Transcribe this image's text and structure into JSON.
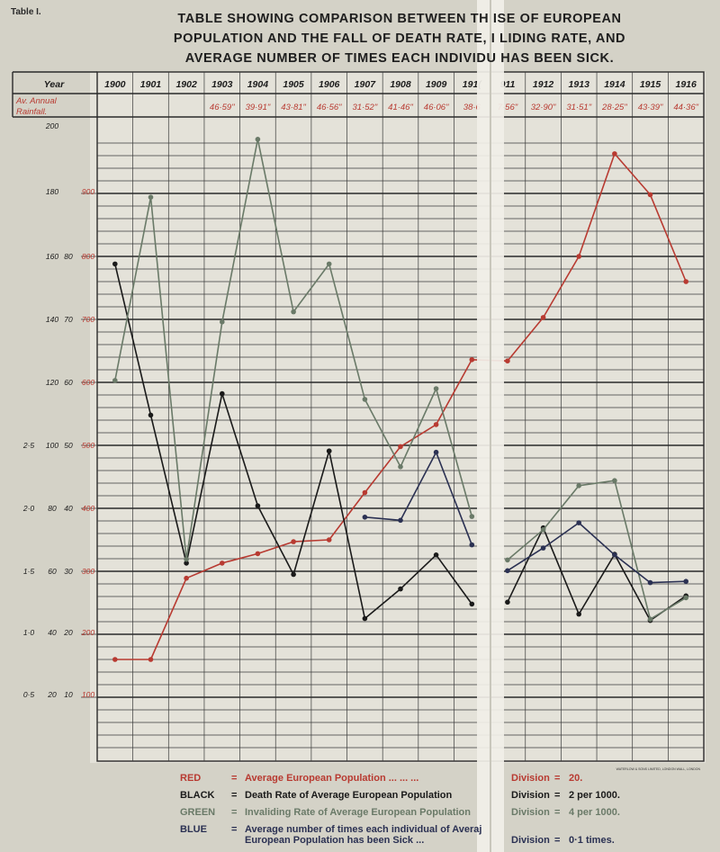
{
  "page": {
    "table_label": "Table I.",
    "title_lines": [
      "TABLE SHOWING COMPARISON BETWEEN TH  ISE OF EUROPEAN",
      "POPULATION AND THE FALL OF DEATH RATE, I  LIDING RATE, AND",
      "AVERAGE NUMBER OF TIMES EACH INDIVIDU   HAS BEEN SICK."
    ],
    "printer_credit": "WATERLOW & SONS LIMITED, LONDON WALL, LONDON"
  },
  "colors": {
    "red": "#b83a31",
    "black": "#1a1a1a",
    "green": "#6a7a68",
    "blue": "#2b3153"
  },
  "chart_data": {
    "type": "line",
    "header_rows": {
      "year_label": "Year",
      "rainfall_label_1": "Av. Annual",
      "rainfall_label_2": "Rainfall.",
      "years": [
        "1900",
        "1901",
        "1902",
        "1903",
        "1904",
        "1905",
        "1906",
        "1907",
        "1908",
        "1909",
        "1910",
        "1911",
        "1912",
        "1913",
        "1914",
        "1915",
        "1916"
      ],
      "years_printed": [
        "1900",
        "1901",
        "1902",
        "1903",
        "1904",
        "1905",
        "1906",
        "1907",
        "1908",
        "1909",
        "191(",
        "911",
        "1912",
        "1913",
        "1914",
        "1915",
        "1916"
      ],
      "rainfall": [
        "",
        "",
        "",
        "46·59\"",
        "39·91\"",
        "43·81\"",
        "46·56\"",
        "31·52\"",
        "41·46\"",
        "46·06\"",
        "38·6",
        "7·56\"",
        "32·90\"",
        "31·51\"",
        "28·25\"",
        "43·39\"",
        "44·36\""
      ]
    },
    "y_scales": [
      {
        "name": "Blue (times sick)",
        "ticks": [
          "2·5",
          "2·0",
          "1·5",
          "1·0",
          "0·5"
        ]
      },
      {
        "name": "Black (per 1000)",
        "ticks": [
          "",
          "",
          "",
          "",
          "",
          "",
          "",
          ""
        ],
        "ticks_full": [
          "180",
          "160",
          "140",
          "120",
          "100",
          "80",
          "60",
          "40",
          "20"
        ]
      },
      {
        "name": "Green (per 1000)",
        "ticks": [
          "80",
          "70",
          "60",
          "50",
          "40",
          "30",
          "20",
          "10"
        ]
      },
      {
        "name": "Red (population)",
        "ticks": [
          "900",
          "800",
          "700",
          "600",
          "500",
          "400",
          "300",
          "200",
          "100"
        ]
      }
    ],
    "tick_columns": {
      "blue": [
        "",
        "",
        "",
        "",
        "",
        "2·5",
        "2·0",
        "1·5",
        "1·0",
        "0·5"
      ],
      "black": [
        "200",
        "180",
        "160",
        "140",
        "120",
        "100",
        "80",
        "60",
        "40",
        "20"
      ],
      "green": [
        "",
        "",
        "80",
        "70",
        "60",
        "50",
        "40",
        "30",
        "20",
        "10"
      ],
      "red": [
        "",
        "900",
        "800",
        "700",
        "600",
        "500",
        "400",
        "300",
        "200",
        "100"
      ]
    },
    "ylim_red": [
      0,
      1000
    ],
    "series": [
      {
        "name": "RED",
        "color_key": "red",
        "points": [
          [
            "1900",
            160
          ],
          [
            "1901",
            160
          ],
          [
            "1902",
            289
          ],
          [
            "1903",
            313
          ],
          [
            "1904",
            328
          ],
          [
            "1905",
            347
          ],
          [
            "1906",
            350
          ],
          [
            "1907",
            425
          ],
          [
            "1908",
            498
          ],
          [
            "1909",
            533
          ],
          [
            "1910",
            636
          ],
          [
            "1911",
            634
          ],
          [
            "1912",
            703
          ],
          [
            "1913",
            800
          ],
          [
            "1914",
            963
          ],
          [
            "1915",
            898
          ],
          [
            "1916",
            760
          ]
        ]
      },
      {
        "name": "BLACK",
        "color_key": "black",
        "segments": [
          [
            [
              "1900",
              788
            ],
            [
              "1901",
              548
            ],
            [
              "1902",
              313
            ],
            [
              "1903",
              582
            ],
            [
              "1904",
              404
            ],
            [
              "1905",
              295
            ],
            [
              "1906",
              491
            ]
          ],
          [
            [
              "1906",
              491
            ],
            [
              "1907",
              225
            ],
            [
              "1908",
              272
            ],
            [
              "1909",
              326
            ],
            [
              "1910",
              248
            ]
          ],
          [
            [
              "1911",
              251
            ],
            [
              "1912",
              369
            ],
            [
              "1913",
              232
            ],
            [
              "1914",
              327
            ],
            [
              "1915",
              222
            ],
            [
              "1916",
              261
            ]
          ]
        ]
      },
      {
        "name": "GREEN",
        "color_key": "green",
        "segments": [
          [
            [
              "1900",
              603
            ],
            [
              "1901",
              894
            ],
            [
              "1902",
              319
            ],
            [
              "1903",
              696
            ],
            [
              "1904",
              986
            ],
            [
              "1905",
              712
            ],
            [
              "1906",
              788
            ],
            [
              "1907",
              573
            ],
            [
              "1908",
              466
            ],
            [
              "1909",
              590
            ],
            [
              "1910",
              387
            ]
          ],
          [
            [
              "1911",
              318
            ],
            [
              "1912",
              366
            ],
            [
              "1913",
              436
            ],
            [
              "1914",
              444
            ],
            [
              "1915",
              224
            ],
            [
              "1916",
              258
            ]
          ]
        ]
      },
      {
        "name": "BLUE",
        "color_key": "blue",
        "segments": [
          [
            [
              "1907",
              386
            ],
            [
              "1908",
              381
            ],
            [
              "1909",
              489
            ],
            [
              "1910",
              342
            ]
          ],
          [
            [
              "1911",
              301
            ],
            [
              "1912",
              337
            ],
            [
              "1913",
              377
            ],
            [
              "1914",
              326
            ],
            [
              "1915",
              282
            ],
            [
              "1916",
              284
            ]
          ]
        ]
      }
    ],
    "legend": [
      {
        "key": "RED",
        "desc_1": "Average European Population",
        "desc_2": "",
        "dots": "...  ...  ...",
        "division": "Division",
        "scale": "20.",
        "color_key": "red"
      },
      {
        "key": "BLACK",
        "desc_1": "Death Rate of Average European Population",
        "desc_2": "",
        "dots": "",
        "division": "Division",
        "scale": "2 per 1000.",
        "color_key": "black"
      },
      {
        "key": "GREEN",
        "desc_1": "Invaliding Rate of Average European Population",
        "desc_2": "",
        "dots": "",
        "division": "Division",
        "scale": "4 per 1000.",
        "color_key": "green"
      },
      {
        "key": "BLUE",
        "desc_1": "Average number of times each individual of Averaj",
        "desc_2": "European Population has been Sick   ...",
        "dots": "",
        "division": "Division",
        "scale": "0·1 times.",
        "color_key": "blue"
      }
    ]
  }
}
